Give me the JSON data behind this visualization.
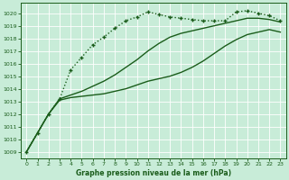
{
  "bg_color": "#c8ecd8",
  "grid_color": "#b0d4b0",
  "line_color": "#1a5c1a",
  "title": "Graphe pression niveau de la mer (hPa)",
  "ylim": [
    1008.5,
    1020.8
  ],
  "xlim": [
    -0.5,
    23.5
  ],
  "yticks": [
    1009,
    1010,
    1011,
    1012,
    1013,
    1014,
    1015,
    1016,
    1017,
    1018,
    1019,
    1020
  ],
  "xticks": [
    0,
    1,
    2,
    3,
    4,
    5,
    6,
    7,
    8,
    9,
    10,
    11,
    12,
    13,
    14,
    15,
    16,
    17,
    18,
    19,
    20,
    21,
    22,
    23
  ],
  "series": [
    {
      "x": [
        0,
        1,
        2,
        3,
        4,
        5,
        6,
        7,
        8,
        9,
        10,
        11,
        12,
        13,
        14,
        15,
        16,
        17,
        18,
        19,
        20,
        21,
        22,
        23
      ],
      "y": [
        1009.0,
        1010.5,
        1012.0,
        1013.1,
        1013.3,
        1013.4,
        1013.5,
        1013.6,
        1013.8,
        1014.0,
        1014.3,
        1014.6,
        1014.8,
        1015.0,
        1015.3,
        1015.7,
        1016.2,
        1016.8,
        1017.4,
        1017.9,
        1018.3,
        1018.5,
        1018.7,
        1018.5
      ],
      "style": "-",
      "marker": "None",
      "lw": 1.0,
      "ms": 0
    },
    {
      "x": [
        0,
        1,
        2,
        3,
        4,
        5,
        6,
        7,
        8,
        9,
        10,
        11,
        12,
        13,
        14,
        15,
        16,
        17,
        18,
        19,
        20,
        21,
        22,
        23
      ],
      "y": [
        1009.0,
        1010.5,
        1012.0,
        1013.2,
        1013.5,
        1013.8,
        1014.2,
        1014.6,
        1015.1,
        1015.7,
        1016.3,
        1017.0,
        1017.6,
        1018.1,
        1018.4,
        1018.6,
        1018.8,
        1019.0,
        1019.2,
        1019.4,
        1019.6,
        1019.6,
        1019.5,
        1019.3
      ],
      "style": "-",
      "marker": "None",
      "lw": 1.0,
      "ms": 0
    },
    {
      "x": [
        0,
        1,
        2,
        3,
        4,
        5,
        6,
        7,
        8,
        9,
        10,
        11,
        12,
        13,
        14,
        15,
        16,
        17,
        18,
        19,
        20,
        21,
        22,
        23
      ],
      "y": [
        1009.0,
        1010.5,
        1012.0,
        1013.2,
        1015.5,
        1016.5,
        1017.5,
        1018.1,
        1018.8,
        1019.4,
        1019.7,
        1020.1,
        1019.9,
        1019.7,
        1019.6,
        1019.5,
        1019.4,
        1019.4,
        1019.4,
        1020.1,
        1020.2,
        1020.0,
        1019.8,
        1019.4
      ],
      "style": ":",
      "marker": "+",
      "lw": 1.0,
      "ms": 3
    }
  ]
}
